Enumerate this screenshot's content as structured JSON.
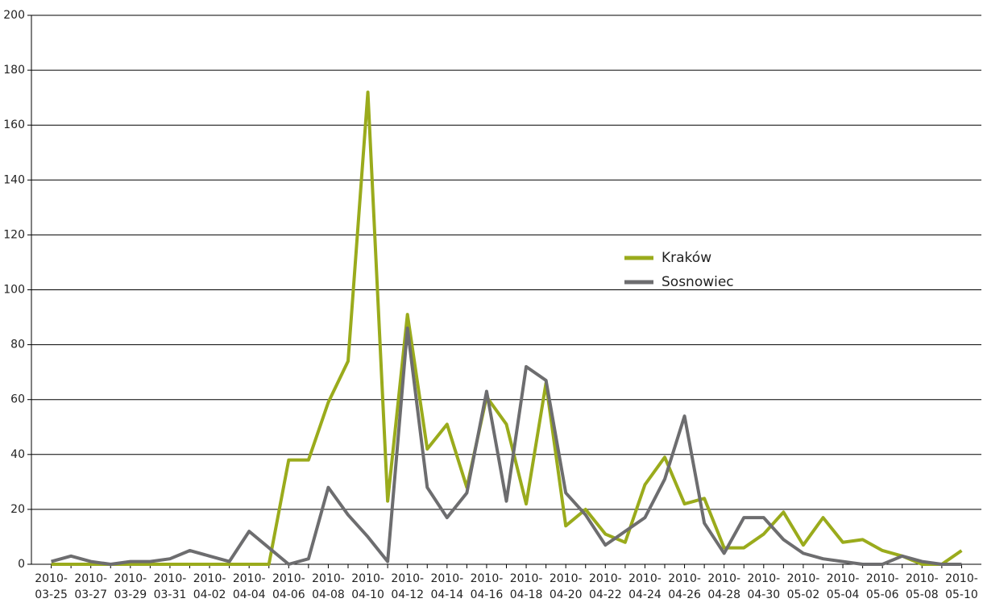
{
  "chart_data": {
    "type": "line",
    "categories": [
      "2010-03-25",
      null,
      "2010-03-27",
      null,
      "2010-03-29",
      null,
      "2010-03-31",
      null,
      "2010-04-02",
      null,
      "2010-04-04",
      null,
      "2010-04-06",
      null,
      "2010-04-08",
      null,
      "2010-04-10",
      null,
      "2010-04-12",
      null,
      "2010-04-14",
      null,
      "2010-04-16",
      null,
      "2010-04-18",
      null,
      "2010-04-20",
      null,
      "2010-04-22",
      null,
      "2010-04-24",
      null,
      "2010-04-26",
      null,
      "2010-04-28",
      null,
      "2010-04-30",
      null,
      "2010-05-02",
      null,
      "2010-05-04",
      null,
      "2010-05-06",
      null,
      "2010-05-08",
      null,
      "2010-05-10"
    ],
    "series": [
      {
        "name": "Kraków",
        "color": "#9aab1c",
        "values": [
          0,
          0,
          0,
          0,
          0,
          0,
          0,
          0,
          0,
          0,
          0,
          0,
          38,
          38,
          59,
          74,
          172,
          23,
          91,
          42,
          51,
          28,
          61,
          51,
          22,
          66,
          14,
          20,
          11,
          8,
          29,
          39,
          22,
          24,
          6,
          6,
          11,
          19,
          7,
          17,
          8,
          9,
          5,
          3,
          0,
          0,
          5
        ]
      },
      {
        "name": "Sosnowiec",
        "color": "#6d6d6f",
        "values": [
          1,
          3,
          1,
          0,
          1,
          1,
          2,
          5,
          3,
          1,
          12,
          6,
          0,
          2,
          28,
          18,
          10,
          1,
          86,
          28,
          17,
          26,
          63,
          23,
          72,
          67,
          26,
          18,
          7,
          12,
          17,
          31,
          54,
          15,
          4,
          17,
          17,
          9,
          4,
          2,
          1,
          0,
          0,
          3,
          1,
          0,
          0
        ]
      }
    ],
    "ylim": [
      0,
      200
    ],
    "yticks": [
      0,
      20,
      40,
      60,
      80,
      100,
      120,
      140,
      160,
      180,
      200
    ],
    "grid": true,
    "legend": "center-right"
  }
}
